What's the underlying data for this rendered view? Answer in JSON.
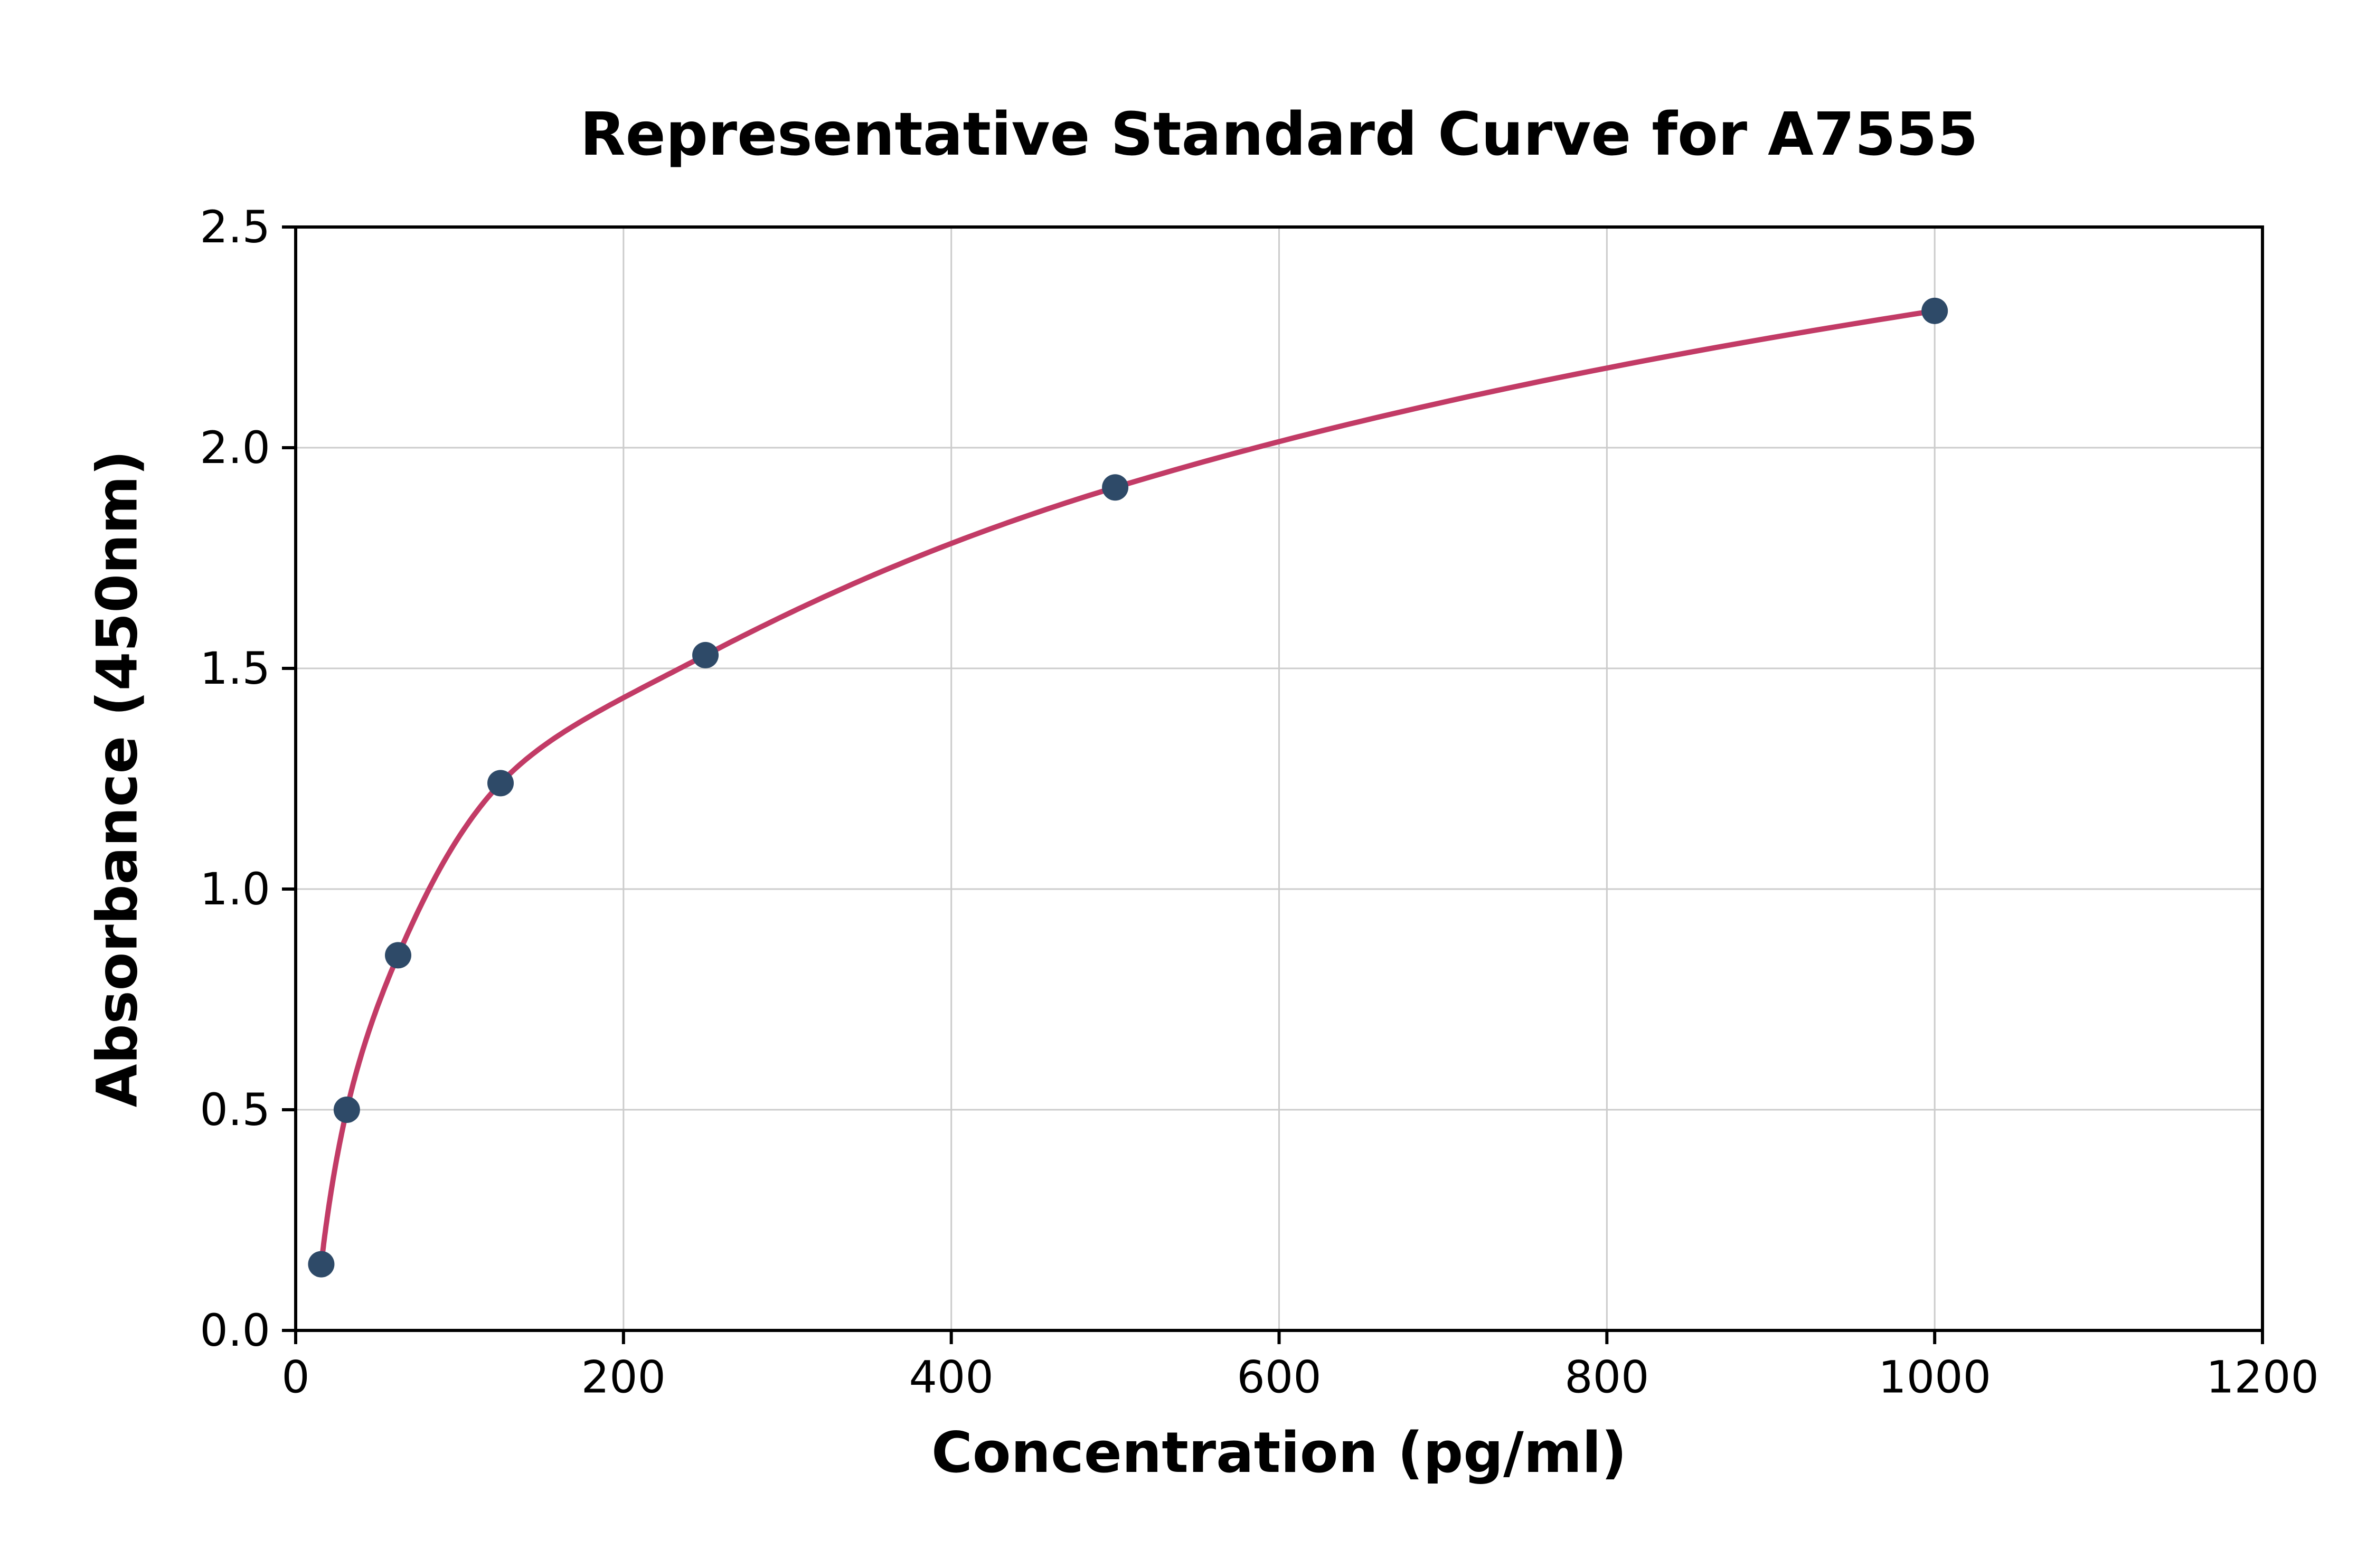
{
  "chart_data": {
    "type": "scatter",
    "title": "Representative Standard Curve for A7555",
    "xlabel": "Concentration (pg/ml)",
    "ylabel": "Absorbance (450nm)",
    "xlim": [
      0,
      1200
    ],
    "ylim": [
      0,
      2.5
    ],
    "x_ticks": {
      "values": [
        0,
        200,
        400,
        600,
        800,
        1000,
        1200
      ],
      "labels": [
        "0",
        "200",
        "400",
        "600",
        "800",
        "1000",
        "1200"
      ]
    },
    "y_ticks": {
      "values": [
        0,
        0.5,
        1.0,
        1.5,
        2.0,
        2.5
      ],
      "labels": [
        "0.0",
        "0.5",
        "1.0",
        "1.5",
        "2.0",
        "2.5"
      ]
    },
    "grid": true,
    "legend_position": "none",
    "series": [
      {
        "name": "standard-points",
        "type": "scatter",
        "x": [
          15.6,
          31.2,
          62.5,
          125,
          250,
          500,
          1000
        ],
        "y": [
          0.15,
          0.5,
          0.85,
          1.24,
          1.53,
          1.91,
          2.31
        ],
        "color": "#2e4a68"
      },
      {
        "name": "fitted-curve",
        "type": "line",
        "fit_of": "standard-points",
        "color": "#c23b66"
      }
    ],
    "grid_color": "#cccccc",
    "axis_color": "#000000",
    "background_color": "#ffffff"
  }
}
